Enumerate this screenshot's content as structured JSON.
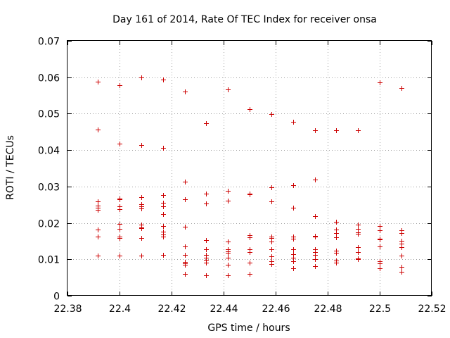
{
  "chart_data": {
    "type": "scatter",
    "title": "Day 161 of 2014, Rate Of TEC Index for receiver onsa",
    "xlabel": "GPS time / hours",
    "ylabel": "ROTI / TECUs",
    "xlim": [
      22.38,
      22.52
    ],
    "ylim": [
      0,
      0.07
    ],
    "xticks": [
      "22.38",
      "22.4",
      "22.42",
      "22.44",
      "22.46",
      "22.48",
      "22.5",
      "22.52"
    ],
    "yticks": [
      "0",
      "0.01",
      "0.02",
      "0.03",
      "0.04",
      "0.05",
      "0.06",
      "0.07"
    ],
    "grid": true,
    "marker": "+",
    "color": "#cc0000",
    "series": [
      {
        "name": "ROTI",
        "points": [
          [
            22.3917,
            0.0588
          ],
          [
            22.3917,
            0.0456
          ],
          [
            22.3917,
            0.0259
          ],
          [
            22.3917,
            0.0248
          ],
          [
            22.3917,
            0.0241
          ],
          [
            22.3917,
            0.0236
          ],
          [
            22.3917,
            0.0181
          ],
          [
            22.3917,
            0.0163
          ],
          [
            22.3917,
            0.011
          ],
          [
            22.4,
            0.0579
          ],
          [
            22.4,
            0.0417
          ],
          [
            22.4,
            0.0266
          ],
          [
            22.4,
            0.0264
          ],
          [
            22.4,
            0.0246
          ],
          [
            22.4,
            0.0238
          ],
          [
            22.4,
            0.0197
          ],
          [
            22.4,
            0.0183
          ],
          [
            22.4,
            0.0162
          ],
          [
            22.4,
            0.0158
          ],
          [
            22.4,
            0.011
          ],
          [
            22.4083,
            0.06
          ],
          [
            22.4083,
            0.0413
          ],
          [
            22.4083,
            0.027
          ],
          [
            22.4083,
            0.0252
          ],
          [
            22.4083,
            0.0245
          ],
          [
            22.4083,
            0.024
          ],
          [
            22.4083,
            0.0196
          ],
          [
            22.4083,
            0.0188
          ],
          [
            22.4083,
            0.0185
          ],
          [
            22.4083,
            0.0159
          ],
          [
            22.4083,
            0.011
          ],
          [
            22.4167,
            0.0593
          ],
          [
            22.4167,
            0.0406
          ],
          [
            22.4167,
            0.0277
          ],
          [
            22.4167,
            0.0256
          ],
          [
            22.4167,
            0.0246
          ],
          [
            22.4167,
            0.0225
          ],
          [
            22.4167,
            0.0191
          ],
          [
            22.4167,
            0.0176
          ],
          [
            22.4167,
            0.0168
          ],
          [
            22.4167,
            0.0163
          ],
          [
            22.4167,
            0.0113
          ],
          [
            22.425,
            0.056
          ],
          [
            22.425,
            0.0313
          ],
          [
            22.425,
            0.0265
          ],
          [
            22.425,
            0.019
          ],
          [
            22.425,
            0.0135
          ],
          [
            22.425,
            0.0112
          ],
          [
            22.425,
            0.0092
          ],
          [
            22.425,
            0.0088
          ],
          [
            22.425,
            0.0085
          ],
          [
            22.425,
            0.006
          ],
          [
            22.4333,
            0.0473
          ],
          [
            22.4333,
            0.028
          ],
          [
            22.4333,
            0.0253
          ],
          [
            22.4333,
            0.0152
          ],
          [
            22.4333,
            0.0128
          ],
          [
            22.4333,
            0.0112
          ],
          [
            22.4333,
            0.0105
          ],
          [
            22.4333,
            0.0098
          ],
          [
            22.4333,
            0.009
          ],
          [
            22.4333,
            0.0056
          ],
          [
            22.4417,
            0.0566
          ],
          [
            22.4417,
            0.0289
          ],
          [
            22.4417,
            0.0261
          ],
          [
            22.4417,
            0.0148
          ],
          [
            22.4417,
            0.0128
          ],
          [
            22.4417,
            0.0122
          ],
          [
            22.4417,
            0.0118
          ],
          [
            22.4417,
            0.0105
          ],
          [
            22.4417,
            0.0085
          ],
          [
            22.4417,
            0.0056
          ],
          [
            22.45,
            0.0512
          ],
          [
            22.45,
            0.0281
          ],
          [
            22.45,
            0.0278
          ],
          [
            22.45,
            0.0166
          ],
          [
            22.45,
            0.016
          ],
          [
            22.45,
            0.0127
          ],
          [
            22.45,
            0.012
          ],
          [
            22.45,
            0.009
          ],
          [
            22.45,
            0.006
          ],
          [
            22.4583,
            0.0498
          ],
          [
            22.4583,
            0.0297
          ],
          [
            22.4583,
            0.0259
          ],
          [
            22.4583,
            0.0162
          ],
          [
            22.4583,
            0.0158
          ],
          [
            22.4583,
            0.0148
          ],
          [
            22.4583,
            0.0128
          ],
          [
            22.4583,
            0.0108
          ],
          [
            22.4583,
            0.0095
          ],
          [
            22.4583,
            0.0087
          ],
          [
            22.4667,
            0.0477
          ],
          [
            22.4667,
            0.0303
          ],
          [
            22.4667,
            0.0242
          ],
          [
            22.4667,
            0.0162
          ],
          [
            22.4667,
            0.0156
          ],
          [
            22.4667,
            0.0127
          ],
          [
            22.4667,
            0.0115
          ],
          [
            22.4667,
            0.0105
          ],
          [
            22.4667,
            0.0095
          ],
          [
            22.4667,
            0.0075
          ],
          [
            22.475,
            0.0454
          ],
          [
            22.475,
            0.0319
          ],
          [
            22.475,
            0.0218
          ],
          [
            22.475,
            0.0165
          ],
          [
            22.475,
            0.0163
          ],
          [
            22.475,
            0.0128
          ],
          [
            22.475,
            0.012
          ],
          [
            22.475,
            0.0112
          ],
          [
            22.475,
            0.01
          ],
          [
            22.475,
            0.0082
          ],
          [
            22.4833,
            0.0454
          ],
          [
            22.4833,
            0.0203
          ],
          [
            22.4833,
            0.0182
          ],
          [
            22.4833,
            0.0172
          ],
          [
            22.4833,
            0.016
          ],
          [
            22.4833,
            0.0123
          ],
          [
            22.4833,
            0.0118
          ],
          [
            22.4833,
            0.0097
          ],
          [
            22.4833,
            0.009
          ],
          [
            22.4917,
            0.0454
          ],
          [
            22.4917,
            0.0195
          ],
          [
            22.4917,
            0.0183
          ],
          [
            22.4917,
            0.0175
          ],
          [
            22.4917,
            0.017
          ],
          [
            22.4917,
            0.0133
          ],
          [
            22.4917,
            0.012
          ],
          [
            22.4917,
            0.0102
          ],
          [
            22.4917,
            0.01
          ],
          [
            22.5,
            0.0585
          ],
          [
            22.5,
            0.0192
          ],
          [
            22.5,
            0.018
          ],
          [
            22.5,
            0.0157
          ],
          [
            22.5,
            0.0155
          ],
          [
            22.5,
            0.0135
          ],
          [
            22.5,
            0.0095
          ],
          [
            22.5,
            0.0088
          ],
          [
            22.5,
            0.0075
          ],
          [
            22.5083,
            0.057
          ],
          [
            22.5083,
            0.018
          ],
          [
            22.5083,
            0.0172
          ],
          [
            22.5083,
            0.015
          ],
          [
            22.5083,
            0.0143
          ],
          [
            22.5083,
            0.0133
          ],
          [
            22.5083,
            0.011
          ],
          [
            22.5083,
            0.008
          ],
          [
            22.5083,
            0.0065
          ]
        ]
      }
    ]
  }
}
